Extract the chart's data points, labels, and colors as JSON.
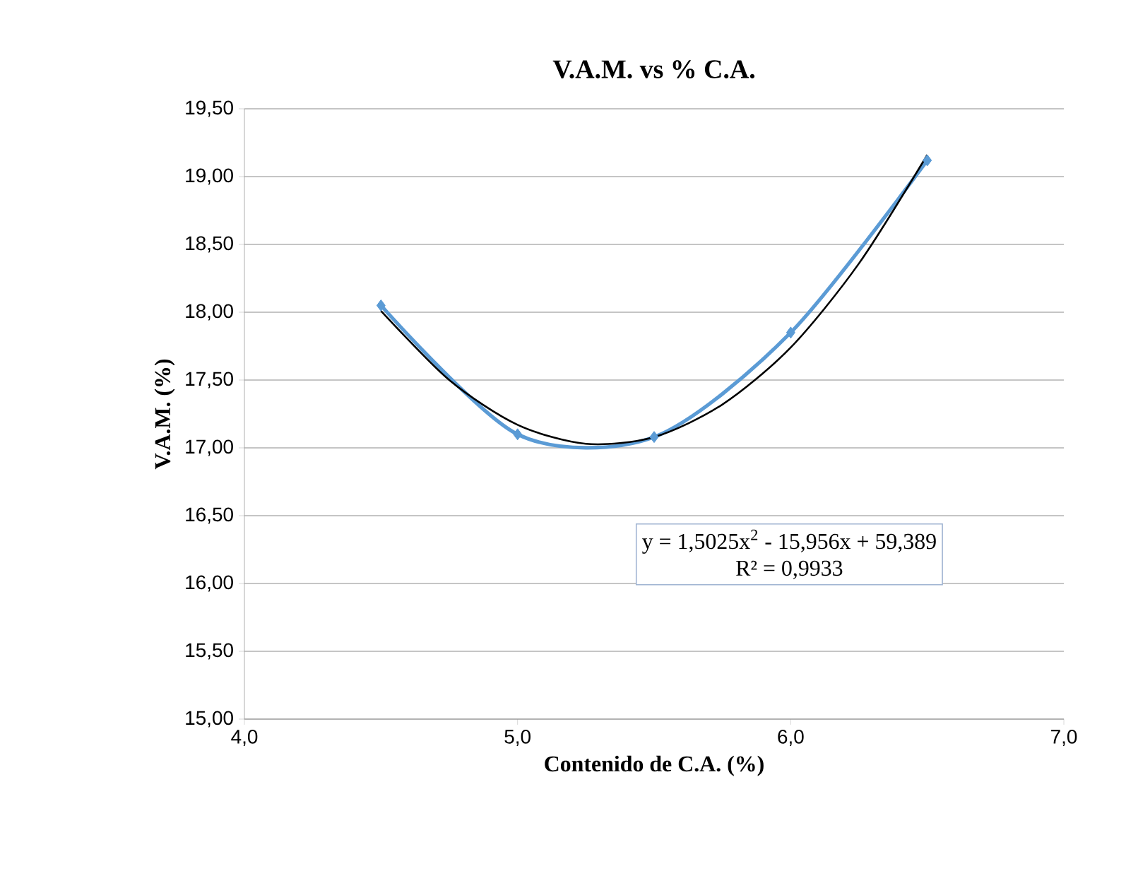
{
  "chart_data": {
    "type": "line",
    "title": "V.A.M. vs % C.A.",
    "xlabel": "Contenido de C.A. (%)",
    "ylabel": "V.A.M. (%)",
    "annotations": [
      "y = 1,5025x$^{2}$ - 15,956x + 59,389",
      "R² = 0,9933"
    ],
    "xlim": [
      4,
      7
    ],
    "ylim": [
      15,
      19.5
    ],
    "xticks": [
      {
        "value": 4,
        "label": "4,0"
      },
      {
        "value": 5,
        "label": "5,0"
      },
      {
        "value": 6,
        "label": "6,0"
      },
      {
        "value": 7,
        "label": "7,0"
      }
    ],
    "yticks": [
      {
        "value": 15,
        "label": "15,00"
      },
      {
        "value": 15.5,
        "label": "15,50"
      },
      {
        "value": 16,
        "label": "16,00"
      },
      {
        "value": 16.5,
        "label": "16,50"
      },
      {
        "value": 17,
        "label": "17,00"
      },
      {
        "value": 17.5,
        "label": "17,50"
      },
      {
        "value": 18,
        "label": "18,00"
      },
      {
        "value": 18.5,
        "label": "18,50"
      },
      {
        "value": 19,
        "label": "19,00"
      },
      {
        "value": 19.5,
        "label": "19,50"
      }
    ],
    "grid": "y",
    "marker": "diamond",
    "series": [
      {
        "color": "#5b9bd5",
        "x": [
          4.5,
          5.0,
          5.5,
          6.0,
          6.5
        ],
        "values": [
          18.05,
          17.1,
          17.08,
          17.85,
          19.12
        ]
      },
      {
        "type": "line",
        "color": "#000000",
        "marker": "none",
        "x": [
          4.5,
          4.75,
          5.0,
          5.25,
          5.5,
          5.75,
          6.0,
          6.25,
          6.5
        ],
        "values": [
          18.01,
          17.5,
          17.17,
          17.03,
          17.08,
          17.32,
          17.74,
          18.36,
          19.16
        ]
      }
    ]
  }
}
